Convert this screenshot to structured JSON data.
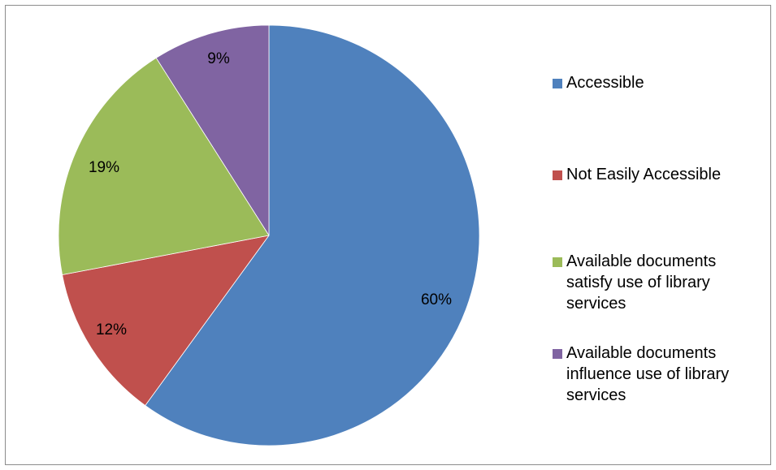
{
  "chart_data": {
    "type": "pie",
    "title": "",
    "start_angle_deg": 0,
    "direction": "clockwise",
    "legend_position": "right",
    "slices": [
      {
        "name": "Accessible",
        "value": 60,
        "label": "60%",
        "color": "#4f81bd"
      },
      {
        "name": "Not Easily Accessible",
        "value": 12,
        "label": "12%",
        "color": "#c0504d"
      },
      {
        "name": "Available documents satisfy use of library services",
        "value": 19,
        "label": "19%",
        "color": "#9bbb59"
      },
      {
        "name": "Available documents influence use of library services",
        "value": 9,
        "label": "9%",
        "color": "#8064a2"
      }
    ],
    "legend": [
      {
        "line1": "Accessible",
        "line2": "",
        "line3": ""
      },
      {
        "line1": "Not Easily Accessible",
        "line2": "",
        "line3": ""
      },
      {
        "line1": "Available documents",
        "line2": "satisfy use of library",
        "line3": "services"
      },
      {
        "line1": "Available documents",
        "line2": "influence use of library",
        "line3": "services"
      }
    ]
  }
}
